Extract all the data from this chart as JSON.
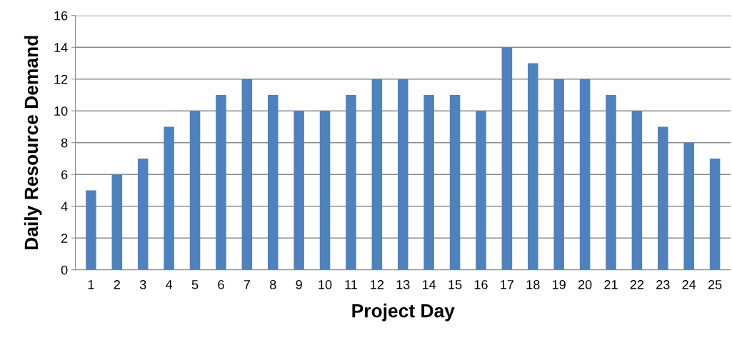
{
  "chart_data": {
    "type": "bar",
    "xlabel": "Project Day",
    "ylabel": "Daily Resource Demand",
    "categories": [
      "1",
      "2",
      "3",
      "4",
      "5",
      "6",
      "7",
      "8",
      "9",
      "10",
      "11",
      "12",
      "13",
      "14",
      "15",
      "16",
      "17",
      "18",
      "19",
      "20",
      "21",
      "22",
      "23",
      "24",
      "25"
    ],
    "values": [
      5,
      6,
      7,
      9,
      10,
      11,
      12,
      11,
      10,
      10,
      11,
      12,
      12,
      11,
      11,
      10,
      14,
      13,
      12,
      12,
      11,
      10,
      9,
      8,
      7
    ],
    "color": "#4f81bd",
    "ylim": [
      0,
      16
    ],
    "yticks": [
      0,
      2,
      4,
      6,
      8,
      10,
      12,
      14,
      16
    ],
    "grid": "y"
  }
}
